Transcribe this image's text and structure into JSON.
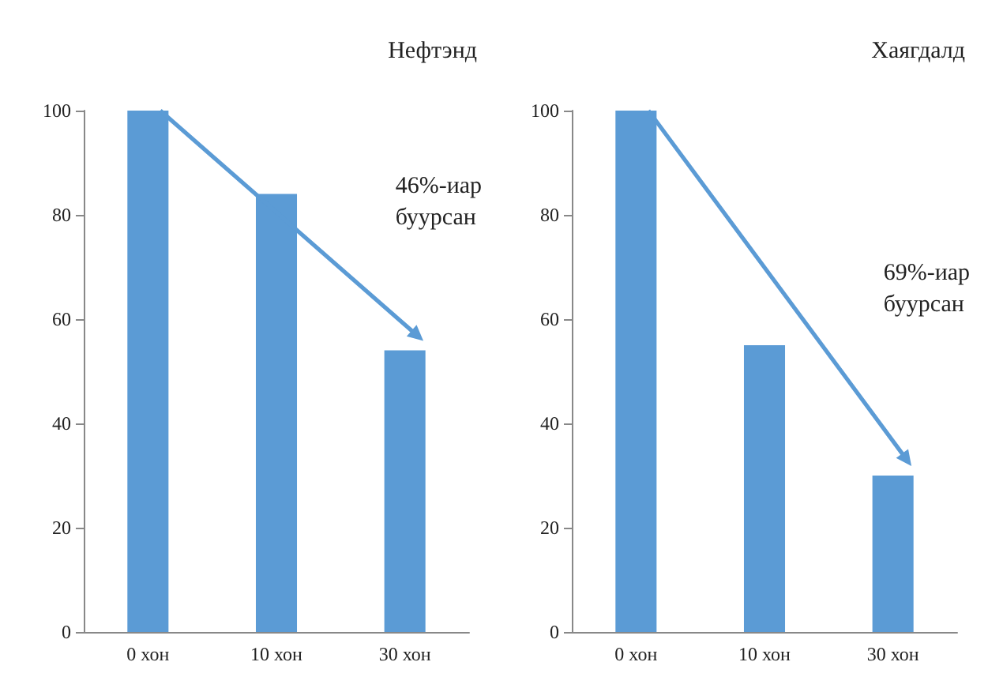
{
  "chart_data": [
    {
      "type": "bar",
      "title": "Нефтэнд",
      "categories": [
        "0 хон",
        "10 хон",
        "30 хон"
      ],
      "values": [
        100,
        84,
        54
      ],
      "color": "#5b9bd5",
      "ylim": [
        0,
        100
      ],
      "yticks": [
        0,
        20,
        40,
        60,
        80,
        100
      ],
      "grid": false,
      "annotations": [
        "46%-иар\nбуурсан"
      ]
    },
    {
      "type": "bar",
      "title": "Хаягдалд",
      "categories": [
        "0 хон",
        "10 хон",
        "30 хон"
      ],
      "values": [
        100,
        55,
        30
      ],
      "color": "#5b9bd5",
      "ylim": [
        0,
        100
      ],
      "yticks": [
        0,
        20,
        40,
        60,
        80,
        100
      ],
      "grid": false,
      "annotations": [
        "69%-иар\nбуурсан"
      ]
    }
  ]
}
